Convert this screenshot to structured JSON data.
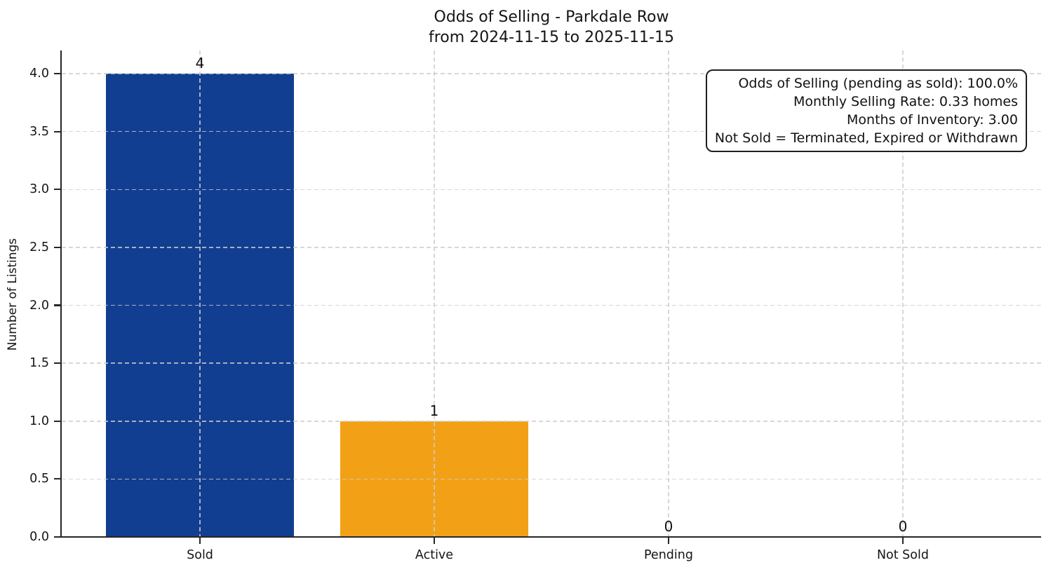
{
  "figure": {
    "background": "#ffffff"
  },
  "chart_data": {
    "type": "bar",
    "title": "Odds of Selling - Parkdale Row",
    "subtitle": "from 2024-11-15 to 2025-11-15",
    "xlabel": "",
    "ylabel": "Number of Listings",
    "categories": [
      "Sold",
      "Active",
      "Pending",
      "Not Sold"
    ],
    "values": [
      4,
      1,
      0,
      0
    ],
    "bar_value_labels": [
      "4",
      "1",
      "0",
      "0"
    ],
    "bar_colors": [
      "#123E91",
      "#F2A116",
      null,
      null
    ],
    "ylim": [
      0,
      4.2
    ],
    "xlim": [
      -0.59,
      3.59
    ],
    "bar_width_data": 0.8,
    "yticks": [
      0,
      0.5,
      1,
      1.5,
      2,
      2.5,
      3,
      3.5,
      4
    ],
    "ytick_decimals": 1,
    "grid": "dashed",
    "legend": "none",
    "axis_color": "#262626",
    "grid_color": "#d3d3d3",
    "annotation": {
      "lines": [
        "Odds of Selling (pending as sold): 100.0%",
        "Monthly Selling Rate: 0.33 homes",
        "Months of Inventory: 3.00",
        "Not Sold = Terminated, Expired or Withdrawn"
      ]
    }
  }
}
